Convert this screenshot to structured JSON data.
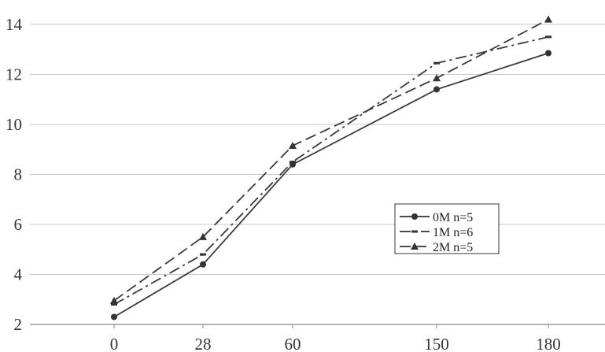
{
  "chart_data": {
    "type": "line",
    "title": "",
    "xlabel": "",
    "ylabel": "",
    "categories": [
      "0",
      "28",
      "60",
      "150",
      "180"
    ],
    "ylim": [
      2,
      15
    ],
    "yticks": [
      "2",
      "4",
      "6",
      "8",
      "10",
      "12",
      "14"
    ],
    "grid": true,
    "legend_position": "bottom-right",
    "series": [
      {
        "name": "0M  n=5",
        "values": [
          2.3,
          4.4,
          8.4,
          11.4,
          12.85
        ],
        "dash": "solid",
        "marker": "circle"
      },
      {
        "name": "1M  n=6",
        "values": [
          2.8,
          4.8,
          8.5,
          12.45,
          13.5
        ],
        "dash": "dash-dot",
        "marker": "dash"
      },
      {
        "name": "2M  n=5",
        "values": [
          2.95,
          5.5,
          9.15,
          11.85,
          14.2
        ],
        "dash": "dashed",
        "marker": "triangle"
      }
    ]
  }
}
